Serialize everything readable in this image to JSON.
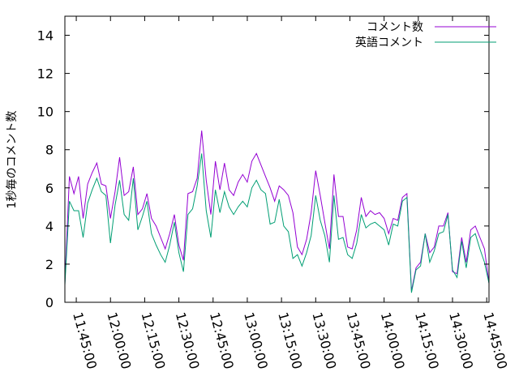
{
  "chart_data": {
    "type": "line",
    "ylabel": "1秒毎のコメント数",
    "xlabel": "",
    "ylim": [
      0,
      15
    ],
    "xlim": [
      "11:40:00",
      "14:46:00"
    ],
    "grid": false,
    "legend_position": "top-right",
    "y_ticks": [
      "0",
      "2",
      "4",
      "6",
      "8",
      "10",
      "12",
      "14"
    ],
    "x_ticks": [
      "11:45:00",
      "12:00:00",
      "12:15:00",
      "12:30:00",
      "12:45:00",
      "13:00:00",
      "13:15:00",
      "13:30:00",
      "13:45:00",
      "14:00:00",
      "14:15:00",
      "14:30:00",
      "14:45:00"
    ],
    "x": [
      "11:40:00",
      "11:42:00",
      "11:44:00",
      "11:46:00",
      "11:48:00",
      "11:50:00",
      "11:52:00",
      "11:54:00",
      "11:56:00",
      "11:58:00",
      "12:00:00",
      "12:02:00",
      "12:04:00",
      "12:06:00",
      "12:08:00",
      "12:10:00",
      "12:12:00",
      "12:14:00",
      "12:16:00",
      "12:18:00",
      "12:20:00",
      "12:22:00",
      "12:24:00",
      "12:26:00",
      "12:28:00",
      "12:30:00",
      "12:32:00",
      "12:34:00",
      "12:36:00",
      "12:38:00",
      "12:40:00",
      "12:42:00",
      "12:44:00",
      "12:46:00",
      "12:48:00",
      "12:50:00",
      "12:52:00",
      "12:54:00",
      "12:56:00",
      "12:58:00",
      "13:00:00",
      "13:02:00",
      "13:04:00",
      "13:06:00",
      "13:08:00",
      "13:10:00",
      "13:12:00",
      "13:14:00",
      "13:16:00",
      "13:18:00",
      "13:20:00",
      "13:22:00",
      "13:24:00",
      "13:26:00",
      "13:28:00",
      "13:30:00",
      "13:32:00",
      "13:34:00",
      "13:36:00",
      "13:38:00",
      "13:40:00",
      "13:42:00",
      "13:44:00",
      "13:46:00",
      "13:48:00",
      "13:50:00",
      "13:52:00",
      "13:54:00",
      "13:56:00",
      "13:58:00",
      "14:00:00",
      "14:02:00",
      "14:04:00",
      "14:06:00",
      "14:08:00",
      "14:10:00",
      "14:12:00",
      "14:14:00",
      "14:16:00",
      "14:18:00",
      "14:20:00",
      "14:22:00",
      "14:24:00",
      "14:26:00",
      "14:28:00",
      "14:30:00",
      "14:32:00",
      "14:34:00",
      "14:36:00",
      "14:38:00",
      "14:40:00",
      "14:42:00",
      "14:44:00",
      "14:46:00"
    ],
    "series": [
      {
        "name": "コメント数",
        "color": "#9400d3",
        "values": [
          1.0,
          6.6,
          5.7,
          6.6,
          4.4,
          6.2,
          6.8,
          7.3,
          6.2,
          6.1,
          4.4,
          5.8,
          7.6,
          5.6,
          5.8,
          7.1,
          4.6,
          4.9,
          5.7,
          4.4,
          4.0,
          3.4,
          2.8,
          3.6,
          4.6,
          3.0,
          2.2,
          5.7,
          5.8,
          6.5,
          9.0,
          6.4,
          4.6,
          7.4,
          5.9,
          7.3,
          5.9,
          5.6,
          6.3,
          6.7,
          6.3,
          7.4,
          7.8,
          7.2,
          6.6,
          6.0,
          5.3,
          6.1,
          5.9,
          5.6,
          4.7,
          2.9,
          2.5,
          3.3,
          4.7,
          6.9,
          5.6,
          4.2,
          2.8,
          6.7,
          4.5,
          4.5,
          2.9,
          2.8,
          3.8,
          5.5,
          4.5,
          4.8,
          4.6,
          4.7,
          4.4,
          3.6,
          4.4,
          4.3,
          5.5,
          5.7,
          0.6,
          1.8,
          2.1,
          3.6,
          2.6,
          2.9,
          4.0,
          4.0,
          4.7,
          1.6,
          1.5,
          3.4,
          2.1,
          3.8,
          4.0,
          3.4,
          2.8,
          1.0
        ]
      },
      {
        "name": "英語コメント",
        "color": "#009e73",
        "values": [
          0.9,
          5.3,
          4.8,
          4.8,
          3.4,
          5.2,
          5.9,
          6.5,
          5.8,
          5.6,
          3.1,
          5.1,
          6.4,
          4.6,
          4.3,
          6.5,
          3.8,
          4.5,
          5.3,
          3.6,
          3.0,
          2.5,
          2.1,
          3.0,
          4.2,
          2.6,
          1.6,
          4.6,
          4.9,
          6.1,
          7.8,
          4.8,
          3.4,
          5.9,
          4.7,
          5.8,
          5.0,
          4.6,
          5.0,
          5.3,
          5.0,
          6.0,
          6.4,
          5.9,
          5.7,
          4.1,
          4.2,
          5.4,
          4.0,
          3.7,
          2.3,
          2.5,
          1.9,
          2.6,
          3.5,
          5.6,
          4.3,
          3.5,
          2.1,
          5.6,
          3.3,
          3.4,
          2.5,
          2.3,
          3.1,
          4.6,
          3.9,
          4.1,
          4.2,
          4.0,
          3.8,
          3.0,
          4.1,
          4.0,
          5.3,
          5.5,
          0.5,
          1.7,
          1.9,
          3.6,
          2.1,
          2.7,
          3.6,
          3.7,
          4.6,
          1.7,
          1.3,
          3.2,
          1.8,
          3.4,
          3.6,
          2.8,
          2.1,
          1.0
        ]
      }
    ]
  }
}
